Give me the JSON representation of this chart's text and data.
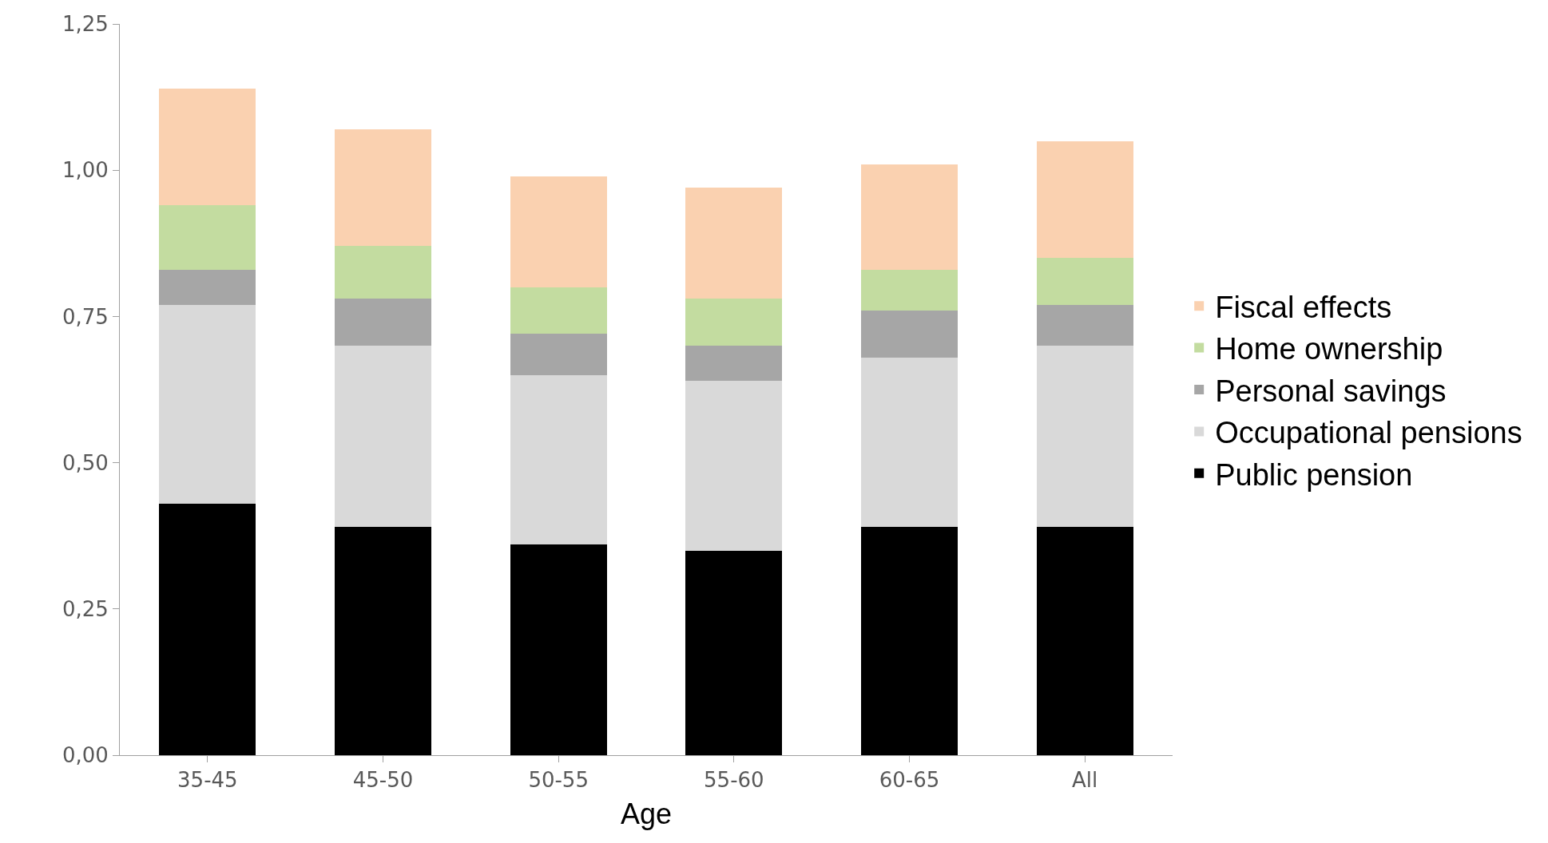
{
  "chart_data": {
    "type": "bar",
    "stacked": true,
    "xlabel": "Age",
    "categories": [
      "35-45",
      "45-50",
      "50-55",
      "55-60",
      "60-65",
      "All"
    ],
    "series": [
      {
        "name": "Public pension",
        "color": "#000000",
        "values": [
          0.43,
          0.39,
          0.36,
          0.35,
          0.39,
          0.39
        ]
      },
      {
        "name": "Occupational pensions",
        "color": "#d9d9d9",
        "values": [
          0.34,
          0.31,
          0.29,
          0.29,
          0.29,
          0.31
        ]
      },
      {
        "name": "Personal savings",
        "color": "#a6a6a6",
        "values": [
          0.06,
          0.08,
          0.07,
          0.06,
          0.08,
          0.07
        ]
      },
      {
        "name": "Home ownership",
        "color": "#c3dca0",
        "values": [
          0.11,
          0.09,
          0.08,
          0.08,
          0.07,
          0.08
        ]
      },
      {
        "name": "Fiscal effects",
        "color": "#fad1b0",
        "values": [
          0.2,
          0.2,
          0.19,
          0.19,
          0.18,
          0.2
        ]
      }
    ],
    "ylim": [
      0,
      1.25
    ],
    "yticks": [
      {
        "value": 0,
        "label": "0,00"
      },
      {
        "value": 0.25,
        "label": "0,25"
      },
      {
        "value": 0.5,
        "label": "0,50"
      },
      {
        "value": 0.75,
        "label": "0,75"
      },
      {
        "value": 1,
        "label": "1,00"
      },
      {
        "value": 1.25,
        "label": "1,25"
      }
    ],
    "legend": "right"
  }
}
